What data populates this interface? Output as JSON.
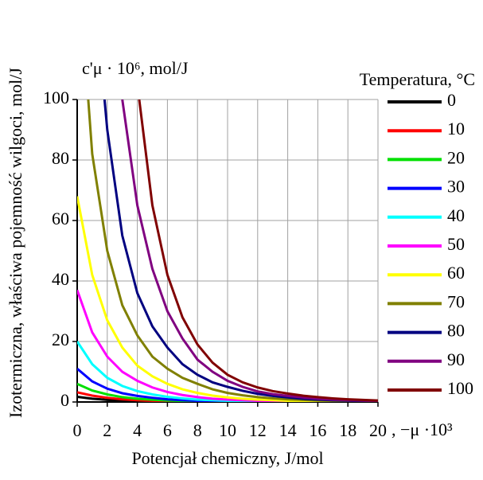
{
  "chart_data": {
    "type": "line",
    "y_label": "Izotermiczna, właściwa pojemność wilgoci, mol/J",
    "y_unit": "c'μ · 10⁶, mol/J",
    "x_label": "Potencjał chemiczny, J/mol",
    "x_unit": ", −μ ·10³",
    "legend_title": "Temperatura, °C",
    "x": [
      0,
      1,
      2,
      3,
      4,
      5,
      6,
      7,
      8,
      9,
      10,
      11,
      12,
      13,
      14,
      15,
      16,
      17,
      18,
      19,
      20
    ],
    "xlim": [
      0,
      20
    ],
    "ylim": [
      0,
      100
    ],
    "xticks": [
      0,
      2,
      4,
      6,
      8,
      10,
      12,
      14,
      16,
      18,
      20
    ],
    "yticks": [
      0,
      20,
      40,
      60,
      80,
      100
    ],
    "grid": true,
    "series": [
      {
        "name": "0",
        "color": "#000000",
        "values": [
          1.7,
          1.1,
          0.7,
          0.5,
          0.3,
          0.2,
          0.14,
          0.1,
          0.07,
          0.05,
          0.03,
          0.02,
          0.01,
          0,
          0,
          0,
          0,
          0,
          0,
          0,
          0
        ]
      },
      {
        "name": "10",
        "color": "#ff0000",
        "values": [
          3.2,
          2.1,
          1.4,
          0.9,
          0.6,
          0.4,
          0.28,
          0.2,
          0.13,
          0.09,
          0.06,
          0.04,
          0.03,
          0.02,
          0.01,
          0,
          0,
          0,
          0,
          0,
          0
        ]
      },
      {
        "name": "20",
        "color": "#00e000",
        "values": [
          6,
          3.8,
          2.5,
          1.6,
          1.1,
          0.75,
          0.5,
          0.35,
          0.25,
          0.17,
          0.12,
          0.08,
          0.05,
          0.04,
          0.03,
          0.02,
          0,
          0,
          0,
          0,
          0
        ]
      },
      {
        "name": "30",
        "color": "#0000ff",
        "values": [
          11,
          6.8,
          4.4,
          2.9,
          2,
          1.4,
          0.9,
          0.6,
          0.4,
          0.3,
          0.2,
          0.15,
          0.1,
          0.1,
          0.05,
          0.05,
          0,
          0,
          0,
          0,
          0
        ]
      },
      {
        "name": "40",
        "color": "#00ffff",
        "values": [
          20,
          12.5,
          8,
          5.3,
          3.6,
          2.5,
          1.7,
          1.2,
          0.8,
          0.6,
          0.4,
          0.3,
          0.2,
          0.1,
          0.1,
          0.1,
          0.05,
          0.05,
          0.05,
          0,
          0
        ]
      },
      {
        "name": "50",
        "color": "#ff00ff",
        "values": [
          37,
          23,
          15,
          10,
          7,
          4.8,
          3.3,
          2.3,
          1.6,
          1.1,
          0.8,
          0.6,
          0.4,
          0.3,
          0.2,
          0.1,
          0.1,
          0.1,
          0.1,
          0.05,
          0.05
        ]
      },
      {
        "name": "60",
        "color": "#ffff00",
        "values": [
          68,
          42,
          27,
          18,
          12,
          8.5,
          6,
          4.2,
          3,
          2.1,
          1.5,
          1.1,
          0.8,
          0.6,
          0.4,
          0.3,
          0.2,
          0.15,
          0.1,
          0.1,
          0.1
        ]
      },
      {
        "name": "70",
        "color": "#808000",
        "values": [
          150,
          82,
          50,
          32,
          22,
          15,
          11,
          8,
          6,
          4.2,
          3,
          2.2,
          1.6,
          1.2,
          0.9,
          0.7,
          0.5,
          0.4,
          0.3,
          0.25,
          0.2
        ]
      },
      {
        "name": "80",
        "color": "#000080",
        "values": [
          null,
          145,
          90,
          55,
          36,
          25,
          18,
          12.5,
          9,
          6.5,
          5,
          3.7,
          2.7,
          2,
          1.5,
          1.1,
          0.8,
          0.6,
          0.45,
          0.3,
          0.2
        ]
      },
      {
        "name": "90",
        "color": "#800080",
        "values": [
          null,
          null,
          null,
          100,
          65,
          44,
          30,
          21,
          14,
          10,
          7,
          5,
          3.5,
          2.6,
          2,
          1.5,
          1.1,
          0.8,
          0.6,
          0.45,
          0.3
        ]
      },
      {
        "name": "100",
        "color": "#800000",
        "values": [
          null,
          null,
          null,
          null,
          105,
          65,
          42,
          28,
          19,
          13,
          9,
          6.5,
          4.8,
          3.6,
          2.8,
          2.1,
          1.6,
          1.2,
          0.9,
          0.7,
          0.5
        ]
      }
    ]
  }
}
